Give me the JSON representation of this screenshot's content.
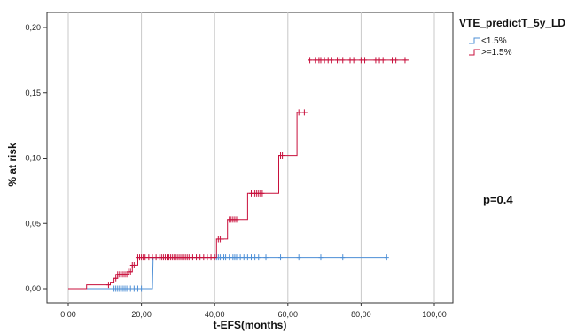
{
  "chart_data": {
    "type": "line",
    "subtype": "kaplan-meier-cumulative-incidence",
    "xlabel": "t-EFS(months)",
    "ylabel": "% at risk",
    "xlim": [
      0,
      100
    ],
    "ylim": [
      0,
      0.2
    ],
    "x_ticks": [
      "0,00",
      "20,00",
      "40,00",
      "60,00",
      "80,00",
      "100,00"
    ],
    "y_ticks": [
      "0,00",
      "0,05",
      "0,10",
      "0,15",
      "0,20"
    ],
    "grid": "vertical",
    "legend_title": "VTE_predictT_5y_LD",
    "legend_position": "top-right",
    "annotation": "p=0.4",
    "series": [
      {
        "name": "<1.5%",
        "color": "#4d8fd6",
        "steps": [
          [
            0,
            0
          ],
          [
            23,
            0.0
          ],
          [
            23.2,
            0.024
          ],
          [
            87,
            0.024
          ]
        ],
        "censor_x": [
          12.5,
          13,
          13.5,
          14,
          14.5,
          15,
          15.5,
          16,
          17,
          18,
          19,
          20,
          40.5,
          41,
          41.5,
          42,
          42.5,
          43,
          44,
          45,
          45.5,
          46,
          47,
          48,
          49,
          50,
          51,
          52,
          54,
          58,
          63,
          69,
          75,
          87
        ]
      },
      {
        "name": ">=1.5%",
        "color": "#c8103c",
        "steps": [
          [
            0,
            0
          ],
          [
            5,
            0
          ],
          [
            5,
            0.003
          ],
          [
            11.5,
            0.003
          ],
          [
            11.5,
            0.005
          ],
          [
            12.5,
            0.005
          ],
          [
            12.5,
            0.008
          ],
          [
            13.5,
            0.008
          ],
          [
            13.5,
            0.011
          ],
          [
            16.5,
            0.011
          ],
          [
            16.5,
            0.013
          ],
          [
            17.5,
            0.013
          ],
          [
            17.5,
            0.018
          ],
          [
            19,
            0.018
          ],
          [
            19,
            0.024
          ],
          [
            40.5,
            0.024
          ],
          [
            40.5,
            0.038
          ],
          [
            43.5,
            0.038
          ],
          [
            43.5,
            0.053
          ],
          [
            49,
            0.053
          ],
          [
            49,
            0.073
          ],
          [
            57.5,
            0.073
          ],
          [
            57.5,
            0.102
          ],
          [
            62.5,
            0.102
          ],
          [
            62.5,
            0.135
          ],
          [
            65.5,
            0.135
          ],
          [
            65.5,
            0.175
          ],
          [
            93,
            0.175
          ]
        ],
        "censor_x": [
          11,
          13,
          13.5,
          14,
          14.5,
          15,
          15.5,
          16,
          16.5,
          17,
          17.5,
          18,
          19,
          19.5,
          20,
          20.5,
          21,
          22,
          23,
          24,
          25,
          25.5,
          26,
          26.5,
          27,
          27.5,
          28,
          28.5,
          29,
          29.5,
          30,
          30.5,
          31,
          31.5,
          32,
          32.5,
          33,
          34,
          35,
          36,
          37,
          38,
          39,
          40,
          41,
          41.5,
          42,
          44,
          44.5,
          45,
          45.5,
          46,
          50,
          50.5,
          51,
          51.5,
          52,
          52.5,
          53,
          58,
          58.5,
          63,
          64.5,
          66,
          67.5,
          68.5,
          69,
          70,
          71,
          72,
          73.5,
          74,
          75,
          77,
          78,
          80,
          81,
          84,
          85,
          86,
          88.5,
          89.5,
          92
        ]
      }
    ]
  }
}
